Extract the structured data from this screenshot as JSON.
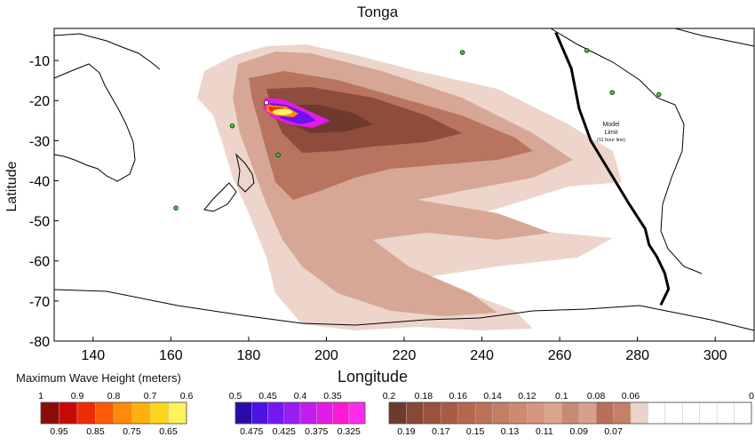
{
  "title": "Tonga",
  "x_axis_label": "Longitude",
  "y_axis_label": "Latitude",
  "colorbar_title": "Maximum Wave Height (meters)",
  "annotation": {
    "lines": [
      "Model",
      "Limit"
    ],
    "sub": "(11 hour line)"
  },
  "chart_data": {
    "type": "heatmap",
    "title": "Tonga",
    "xlabel": "Longitude",
    "ylabel": "Latitude",
    "xlim": [
      130,
      310
    ],
    "ylim": [
      -80,
      -2
    ],
    "x_ticks": [
      140,
      160,
      180,
      200,
      220,
      240,
      260,
      280,
      300
    ],
    "y_ticks": [
      -10,
      -20,
      -30,
      -40,
      -50,
      -60,
      -70,
      -80
    ],
    "source": {
      "lon": 184.6,
      "lat": -20.5
    },
    "stations": [
      {
        "lon": 235,
        "lat": -8
      },
      {
        "lon": 267,
        "lat": -7.5
      },
      {
        "lon": 273.5,
        "lat": -18
      },
      {
        "lon": 285.5,
        "lat": -18.5
      },
      {
        "lon": 175.8,
        "lat": -26.3
      },
      {
        "lon": 187.6,
        "lat": -33.6
      },
      {
        "lon": 161.3,
        "lat": -46.8
      }
    ],
    "model_limit_line": [
      [
        259,
        -3
      ],
      [
        263,
        -12
      ],
      [
        265,
        -22
      ],
      [
        268,
        -30
      ],
      [
        273,
        -38
      ],
      [
        278,
        -46
      ],
      [
        282,
        -52
      ],
      [
        283,
        -56
      ],
      [
        285,
        -59
      ],
      [
        287,
        -63
      ],
      [
        288,
        -67
      ],
      [
        286,
        -71
      ]
    ],
    "colorbar_groups": [
      {
        "colors": [
          "#8c0a08",
          "#c80a06",
          "#ee2c06",
          "#ff5a06",
          "#ff8a08",
          "#ffb00c",
          "#ffd61c",
          "#fff25a"
        ],
        "top_labels": [
          "1",
          "0.9",
          "0.8",
          "0.7",
          "0.6"
        ],
        "bottom_labels": [
          "0.95",
          "0.85",
          "0.75",
          "0.65"
        ]
      },
      {
        "colors": [
          "#2a0aa8",
          "#4a12e4",
          "#7218f2",
          "#9a1cf4",
          "#c21cf0",
          "#e61ae8",
          "#ff18d8",
          "#ff2cf0"
        ],
        "top_labels": [
          "0.5",
          "0.45",
          "0.4",
          "0.35"
        ],
        "bottom_labels": [
          "0.475",
          "0.425",
          "0.375",
          "0.325"
        ]
      },
      {
        "colors": [
          "#6e3a2e",
          "#884836",
          "#9a523c",
          "#a85c44",
          "#b4684e",
          "#bc7258",
          "#c47e64",
          "#cc8a70",
          "#d4967e",
          "#dca48c",
          "#c88a72",
          "#d8a08c",
          "#b87058",
          "#c48068",
          "#ecd2c8",
          "#ffffff",
          "#ffffff",
          "#ffffff",
          "#ffffff",
          "#ffffff",
          "#ffffff"
        ],
        "top_labels": [
          "0.2",
          "0.18",
          "0.16",
          "0.14",
          "0.12",
          "0.1",
          "0.08",
          "0.06",
          "0"
        ],
        "bottom_labels": [
          "0.19",
          "0.17",
          "0.15",
          "0.13",
          "0.11",
          "0.09",
          "0.07"
        ]
      }
    ]
  }
}
